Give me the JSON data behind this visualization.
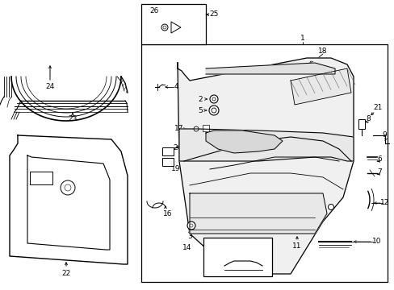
{
  "bg_color": "#ffffff",
  "line_color": "#000000",
  "gray_color": "#666666",
  "fig_width": 4.89,
  "fig_height": 3.6,
  "dpi": 100
}
